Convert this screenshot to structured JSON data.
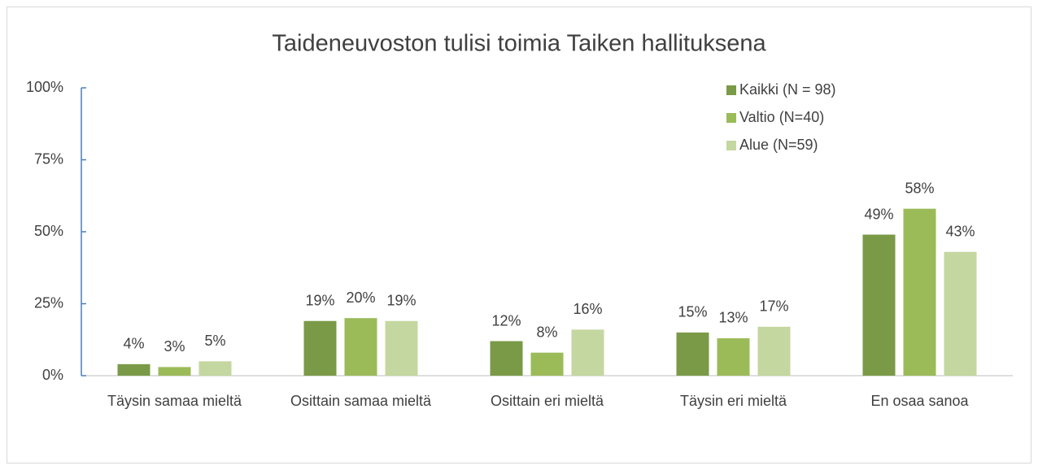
{
  "chart_data": {
    "type": "bar",
    "title": "Taideneuvoston tulisi toimia Taiken hallituksena",
    "categories": [
      "Täysin samaa mieltä",
      "Osittain samaa mieltä",
      "Osittain eri mieltä",
      "Täysin eri mieltä",
      "En osaa sanoa"
    ],
    "series": [
      {
        "name": "Kaikki (N = 98)",
        "color": "#7a9a47",
        "values": [
          4,
          19,
          12,
          15,
          49
        ],
        "value_labels": [
          "4%",
          "19%",
          "12%",
          "15%",
          "49%"
        ]
      },
      {
        "name": "Valtio (N=40)",
        "color": "#9bbb59",
        "values": [
          3,
          20,
          8,
          13,
          58
        ],
        "value_labels": [
          "3%",
          "20%",
          "8%",
          "13%",
          "58%"
        ]
      },
      {
        "name": "Alue (N=59)",
        "color": "#c4d7a0",
        "values": [
          5,
          19,
          16,
          17,
          43
        ],
        "value_labels": [
          "5%",
          "19%",
          "16%",
          "17%",
          "43%"
        ]
      }
    ],
    "ylim": [
      0,
      100
    ],
    "yticks": [
      {
        "value": 0,
        "label": "0%"
      },
      {
        "value": 25,
        "label": "25%"
      },
      {
        "value": 50,
        "label": "50%"
      },
      {
        "value": 75,
        "label": "75%"
      },
      {
        "value": 100,
        "label": "100%"
      }
    ],
    "legend": "upper right"
  }
}
